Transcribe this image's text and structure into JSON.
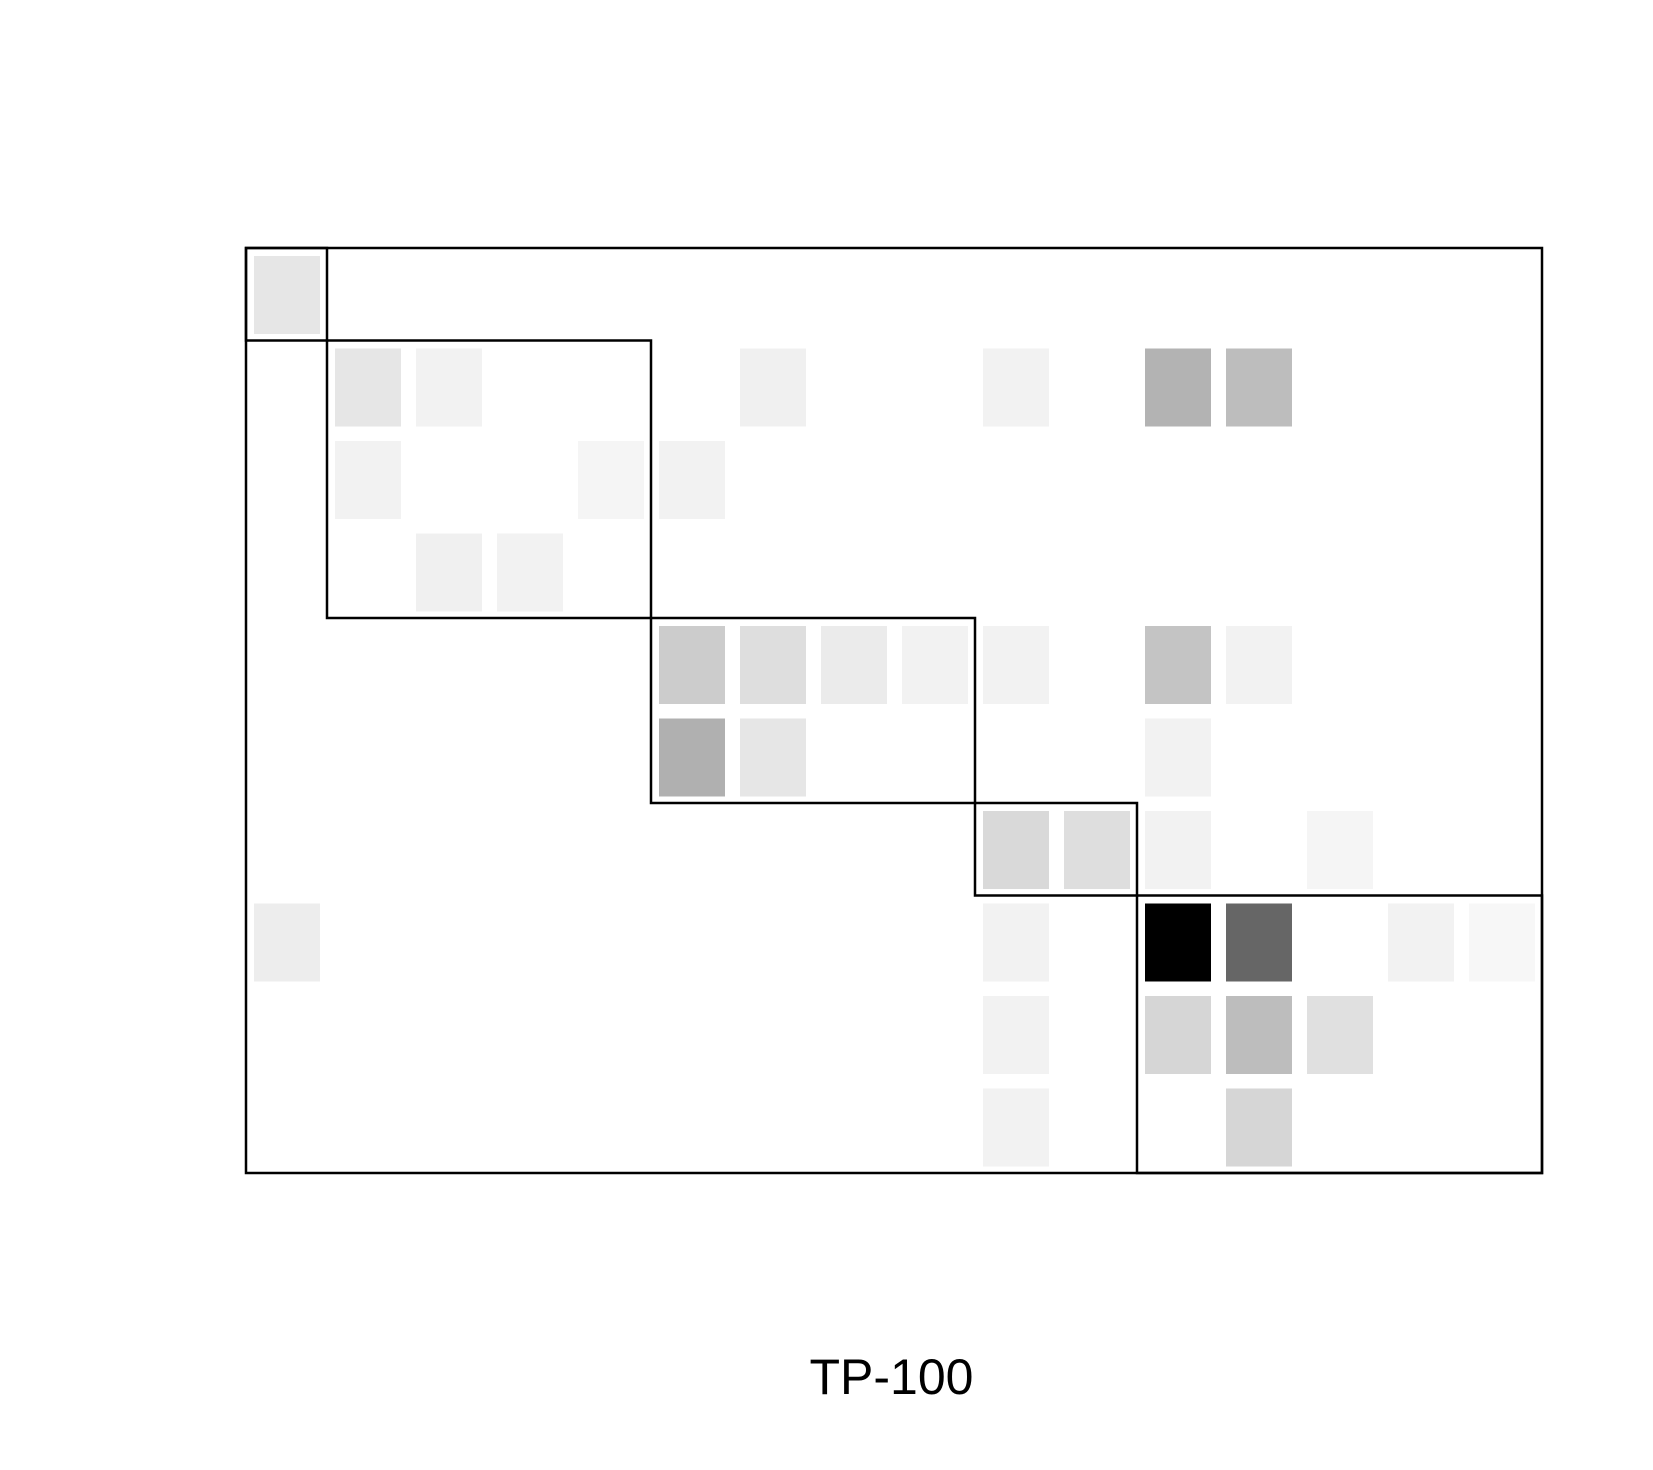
{
  "chart_data": {
    "type": "heatmap",
    "title": "",
    "xlabel": "TP-100",
    "ylabel": "",
    "n_rows": 10,
    "n_cols": 16,
    "value_range": [
      0,
      1
    ],
    "colors": {
      "low": "#ffffff",
      "high": "#000000",
      "frame": "#000000"
    },
    "cells": [
      {
        "row": 0,
        "col": 0,
        "value": 0.1
      },
      {
        "row": 1,
        "col": 1,
        "value": 0.1
      },
      {
        "row": 1,
        "col": 2,
        "value": 0.05
      },
      {
        "row": 1,
        "col": 6,
        "value": 0.06
      },
      {
        "row": 1,
        "col": 9,
        "value": 0.05
      },
      {
        "row": 1,
        "col": 11,
        "value": 0.3
      },
      {
        "row": 1,
        "col": 12,
        "value": 0.26
      },
      {
        "row": 2,
        "col": 1,
        "value": 0.05
      },
      {
        "row": 2,
        "col": 4,
        "value": 0.04
      },
      {
        "row": 2,
        "col": 5,
        "value": 0.05
      },
      {
        "row": 3,
        "col": 2,
        "value": 0.06
      },
      {
        "row": 3,
        "col": 3,
        "value": 0.05
      },
      {
        "row": 4,
        "col": 5,
        "value": 0.2
      },
      {
        "row": 4,
        "col": 6,
        "value": 0.13
      },
      {
        "row": 4,
        "col": 7,
        "value": 0.08
      },
      {
        "row": 4,
        "col": 8,
        "value": 0.05
      },
      {
        "row": 4,
        "col": 9,
        "value": 0.05
      },
      {
        "row": 4,
        "col": 11,
        "value": 0.23
      },
      {
        "row": 4,
        "col": 12,
        "value": 0.05
      },
      {
        "row": 5,
        "col": 5,
        "value": 0.31
      },
      {
        "row": 5,
        "col": 6,
        "value": 0.1
      },
      {
        "row": 5,
        "col": 11,
        "value": 0.05
      },
      {
        "row": 6,
        "col": 9,
        "value": 0.15
      },
      {
        "row": 6,
        "col": 10,
        "value": 0.13
      },
      {
        "row": 6,
        "col": 11,
        "value": 0.05
      },
      {
        "row": 6,
        "col": 13,
        "value": 0.04
      },
      {
        "row": 7,
        "col": 0,
        "value": 0.07
      },
      {
        "row": 7,
        "col": 9,
        "value": 0.05
      },
      {
        "row": 7,
        "col": 11,
        "value": 1.0
      },
      {
        "row": 7,
        "col": 12,
        "value": 0.6
      },
      {
        "row": 7,
        "col": 14,
        "value": 0.05
      },
      {
        "row": 7,
        "col": 15,
        "value": 0.03
      },
      {
        "row": 8,
        "col": 9,
        "value": 0.05
      },
      {
        "row": 8,
        "col": 11,
        "value": 0.16
      },
      {
        "row": 8,
        "col": 12,
        "value": 0.26
      },
      {
        "row": 8,
        "col": 13,
        "value": 0.12
      },
      {
        "row": 9,
        "col": 9,
        "value": 0.05
      },
      {
        "row": 9,
        "col": 12,
        "value": 0.16
      }
    ],
    "blocks": [
      {
        "row_start": 0,
        "row_end": 1,
        "col_start": 0,
        "col_end": 1
      },
      {
        "row_start": 1,
        "row_end": 4,
        "col_start": 1,
        "col_end": 5
      },
      {
        "row_start": 4,
        "row_end": 6,
        "col_start": 5,
        "col_end": 9
      },
      {
        "row_start": 6,
        "row_end": 7,
        "col_start": 9,
        "col_end": 11
      },
      {
        "row_start": 7,
        "row_end": 10,
        "col_start": 11,
        "col_end": 16
      }
    ],
    "grid": false,
    "legend": "none"
  }
}
